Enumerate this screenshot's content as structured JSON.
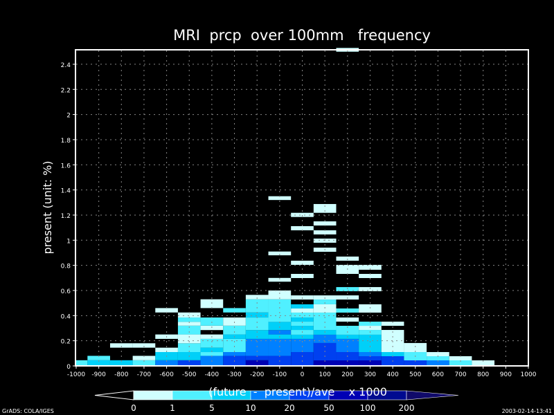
{
  "chart_data": {
    "type": "heatmap",
    "title": "MRI  prcp  over 100mm   frequency",
    "xlabel": "(future  -  present)/ave    x 1000",
    "ylabel": "present (unit: %)",
    "xlim": [
      -1000,
      1000
    ],
    "ylim": [
      0,
      2.5
    ],
    "grid": true,
    "x_ticks": [
      -1000,
      -900,
      -800,
      -700,
      -600,
      -500,
      -400,
      -300,
      -200,
      -100,
      0,
      100,
      200,
      300,
      400,
      500,
      600,
      700,
      800,
      900,
      1000
    ],
    "x_tick_labels": [
      "-1000",
      "-900",
      "-800",
      "-700",
      "-600",
      "-500",
      "-400",
      "-300",
      "-200",
      "-100",
      "0",
      "100",
      "200",
      "300",
      "400",
      "500",
      "600",
      "700",
      "800",
      "900",
      "1000"
    ],
    "y_ticks": [
      0,
      0.2,
      0.4,
      0.6,
      0.8,
      1,
      1.2,
      1.4,
      1.6,
      1.8,
      2,
      2.2,
      2.4
    ],
    "y_tick_labels": [
      "0",
      "0.2",
      "0.4",
      "0.6",
      "0.8",
      "1",
      "1.2",
      "1.4",
      "1.6",
      "1.8",
      "2",
      "2.2",
      "2.4"
    ],
    "bin_width": 100,
    "levels": {
      "boundaries": [
        "0",
        "1",
        "5",
        "10",
        "20",
        "50",
        "100",
        "200"
      ],
      "colors": [
        "#d0ffff",
        "#50f0ff",
        "#00d0f8",
        "#0080ff",
        "#0040f0",
        "#0000b4",
        "#000a90",
        "#100a6a"
      ]
    },
    "bins": [
      {
        "x": -1000,
        "segments": [
          [
            0,
            0.045,
            1
          ]
        ]
      },
      {
        "x": -900,
        "segments": [
          [
            0,
            0.045,
            2
          ],
          [
            0.045,
            0.08,
            1
          ]
        ]
      },
      {
        "x": -800,
        "segments": [
          [
            0,
            0.045,
            2
          ],
          [
            0.145,
            0.18,
            0
          ]
        ]
      },
      {
        "x": -700,
        "segments": [
          [
            0,
            0.045,
            1
          ],
          [
            0.045,
            0.08,
            0
          ],
          [
            0.145,
            0.18,
            0
          ]
        ]
      },
      {
        "x": -600,
        "segments": [
          [
            0,
            0.045,
            3
          ],
          [
            0.045,
            0.11,
            2
          ],
          [
            0.11,
            0.145,
            0
          ],
          [
            0.215,
            0.25,
            0
          ],
          [
            0.425,
            0.46,
            0
          ]
        ]
      },
      {
        "x": -500,
        "segments": [
          [
            0,
            0.045,
            4
          ],
          [
            0.045,
            0.11,
            2
          ],
          [
            0.11,
            0.18,
            1
          ],
          [
            0.18,
            0.25,
            0
          ],
          [
            0.25,
            0.32,
            1
          ],
          [
            0.32,
            0.35,
            0
          ],
          [
            0.35,
            0.385,
            1
          ],
          [
            0.385,
            0.425,
            0
          ]
        ]
      },
      {
        "x": -400,
        "segments": [
          [
            0,
            0.08,
            3
          ],
          [
            0.08,
            0.11,
            1
          ],
          [
            0.11,
            0.145,
            2
          ],
          [
            0.145,
            0.215,
            1
          ],
          [
            0.215,
            0.25,
            0
          ],
          [
            0.285,
            0.32,
            0
          ],
          [
            0.32,
            0.385,
            1
          ],
          [
            0.46,
            0.53,
            0
          ]
        ]
      },
      {
        "x": -300,
        "segments": [
          [
            0,
            0.08,
            4
          ],
          [
            0.08,
            0.11,
            3
          ],
          [
            0.11,
            0.215,
            1
          ],
          [
            0.215,
            0.25,
            2
          ],
          [
            0.25,
            0.32,
            1
          ],
          [
            0.32,
            0.385,
            0
          ],
          [
            0.425,
            0.46,
            1
          ]
        ]
      },
      {
        "x": -200,
        "segments": [
          [
            0,
            0.045,
            5
          ],
          [
            0.045,
            0.08,
            4
          ],
          [
            0.08,
            0.215,
            3
          ],
          [
            0.215,
            0.285,
            2
          ],
          [
            0.285,
            0.385,
            1
          ],
          [
            0.385,
            0.425,
            2
          ],
          [
            0.425,
            0.53,
            1
          ],
          [
            0.53,
            0.565,
            0
          ]
        ]
      },
      {
        "x": -100,
        "segments": [
          [
            0,
            0.08,
            4
          ],
          [
            0.08,
            0.215,
            3
          ],
          [
            0.215,
            0.25,
            2
          ],
          [
            0.25,
            0.285,
            3
          ],
          [
            0.285,
            0.35,
            2
          ],
          [
            0.35,
            0.53,
            1
          ],
          [
            0.53,
            0.6,
            0
          ],
          [
            0.67,
            0.7,
            0
          ],
          [
            0.88,
            0.91,
            0
          ],
          [
            1.32,
            1.35,
            0
          ]
        ]
      },
      {
        "x": 0,
        "segments": [
          [
            0,
            0.11,
            4
          ],
          [
            0.11,
            0.215,
            3
          ],
          [
            0.215,
            0.248,
            2
          ],
          [
            0.248,
            0.286,
            1
          ],
          [
            0.286,
            0.319,
            2
          ],
          [
            0.319,
            0.352,
            1
          ],
          [
            0.352,
            0.385,
            2
          ],
          [
            0.385,
            0.424,
            1
          ],
          [
            0.424,
            0.457,
            0
          ],
          [
            0.457,
            0.49,
            2
          ],
          [
            0.528,
            0.561,
            0
          ],
          [
            0.699,
            0.732,
            0
          ],
          [
            0.804,
            0.837,
            0
          ],
          [
            1.079,
            1.112,
            0
          ],
          [
            1.185,
            1.218,
            0
          ]
        ]
      },
      {
        "x": 100,
        "segments": [
          [
            0,
            0.044,
            5
          ],
          [
            0.044,
            0.182,
            4
          ],
          [
            0.182,
            0.248,
            3
          ],
          [
            0.248,
            0.286,
            2
          ],
          [
            0.286,
            0.424,
            1
          ],
          [
            0.424,
            0.49,
            0
          ],
          [
            0.49,
            0.528,
            1
          ],
          [
            0.528,
            0.561,
            0
          ],
          [
            0.908,
            0.941,
            0
          ],
          [
            0.98,
            1.013,
            0
          ],
          [
            1.046,
            1.079,
            0
          ],
          [
            1.117,
            1.15,
            0
          ],
          [
            1.218,
            1.288,
            0
          ]
        ]
      },
      {
        "x": 200,
        "segments": [
          [
            0,
            0.044,
            5
          ],
          [
            0.044,
            0.11,
            4
          ],
          [
            0.11,
            0.215,
            3
          ],
          [
            0.215,
            0.248,
            2
          ],
          [
            0.248,
            0.319,
            1
          ],
          [
            0.352,
            0.385,
            0
          ],
          [
            0.424,
            0.457,
            1
          ],
          [
            0.528,
            0.561,
            0
          ],
          [
            0.594,
            0.627,
            1
          ],
          [
            0.732,
            0.804,
            0
          ],
          [
            0.837,
            0.87,
            0
          ],
          [
            2.5,
            2.53,
            0
          ]
        ]
      },
      {
        "x": 300,
        "segments": [
          [
            0,
            0.044,
            5
          ],
          [
            0.044,
            0.077,
            4
          ],
          [
            0.077,
            0.11,
            3
          ],
          [
            0.11,
            0.248,
            2
          ],
          [
            0.248,
            0.286,
            1
          ],
          [
            0.286,
            0.319,
            0
          ],
          [
            0.319,
            0.352,
            1
          ],
          [
            0.424,
            0.49,
            0
          ],
          [
            0.594,
            0.627,
            0
          ],
          [
            0.699,
            0.732,
            0
          ],
          [
            0.765,
            0.804,
            0
          ]
        ]
      },
      {
        "x": 400,
        "segments": [
          [
            0,
            0.077,
            4
          ],
          [
            0.077,
            0.11,
            2
          ],
          [
            0.11,
            0.286,
            0
          ],
          [
            0.319,
            0.352,
            0
          ]
        ]
      },
      {
        "x": 500,
        "segments": [
          [
            0,
            0.044,
            4
          ],
          [
            0.044,
            0.11,
            1
          ],
          [
            0.11,
            0.182,
            0
          ]
        ]
      },
      {
        "x": 600,
        "segments": [
          [
            0,
            0.044,
            3
          ],
          [
            0.044,
            0.077,
            1
          ],
          [
            0.077,
            0.11,
            0
          ]
        ]
      },
      {
        "x": 700,
        "segments": [
          [
            0,
            0.044,
            1
          ],
          [
            0.044,
            0.077,
            0
          ]
        ]
      },
      {
        "x": 800,
        "segments": [
          [
            0,
            0.044,
            0
          ]
        ]
      }
    ]
  },
  "footer": {
    "left": "GrADS: COLA/IGES",
    "right": "2003-02-14-13:41"
  }
}
